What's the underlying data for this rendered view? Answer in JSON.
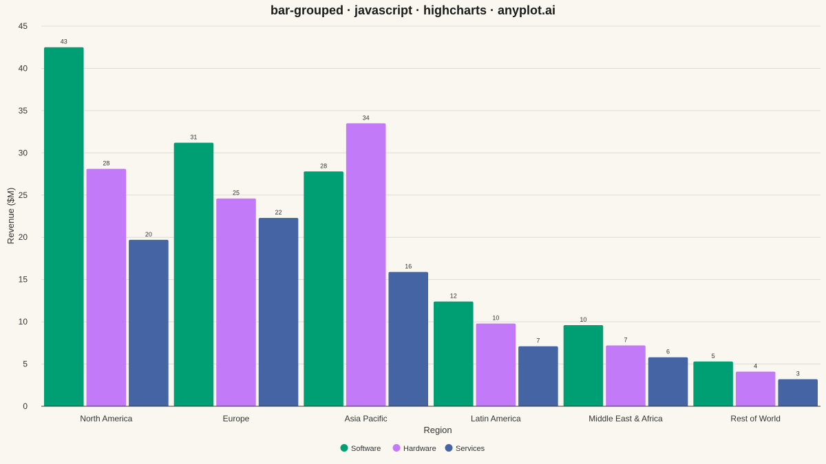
{
  "chart_data": {
    "type": "bar",
    "title": "bar-grouped · javascript · highcharts · anyplot.ai",
    "xlabel": "Region",
    "ylabel": "Revenue ($M)",
    "ylim": [
      0,
      45
    ],
    "yticks": [
      0,
      5,
      10,
      15,
      20,
      25,
      30,
      35,
      40,
      45
    ],
    "grid": true,
    "legend_position": "bottom-center",
    "categories": [
      "North America",
      "Europe",
      "Asia Pacific",
      "Latin America",
      "Middle East & Africa",
      "Rest of World"
    ],
    "series": [
      {
        "name": "Software",
        "color": "#009e73",
        "values": [
          42.5,
          31.2,
          27.8,
          12.4,
          9.6,
          5.3
        ],
        "labels": [
          "43",
          "31",
          "28",
          "12",
          "10",
          "5"
        ]
      },
      {
        "name": "Hardware",
        "color": "#c27af9",
        "values": [
          28.1,
          24.6,
          33.5,
          9.8,
          7.2,
          4.1
        ],
        "labels": [
          "28",
          "25",
          "34",
          "10",
          "7",
          "4"
        ]
      },
      {
        "name": "Services",
        "color": "#4464a3",
        "values": [
          19.7,
          22.3,
          15.9,
          7.1,
          5.8,
          3.2
        ],
        "labels": [
          "20",
          "22",
          "16",
          "7",
          "6",
          "3"
        ]
      }
    ]
  }
}
